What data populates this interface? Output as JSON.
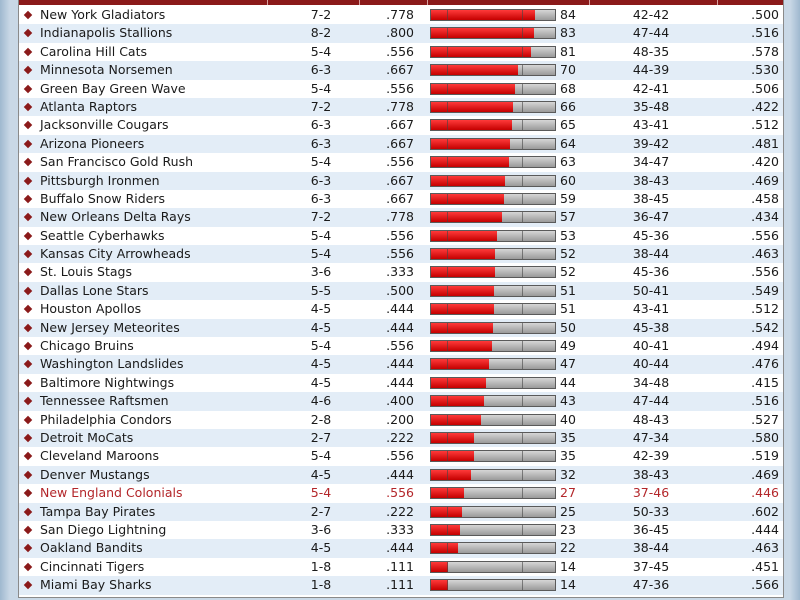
{
  "rows": [
    {
      "team": "New York Gladiators",
      "record": "7-2",
      "pct": ".778",
      "score": 84,
      "split": "42-42",
      "sos": ".500",
      "highlight": false
    },
    {
      "team": "Indianapolis Stallions",
      "record": "8-2",
      "pct": ".800",
      "score": 83,
      "split": "47-44",
      "sos": ".516",
      "highlight": false
    },
    {
      "team": "Carolina Hill Cats",
      "record": "5-4",
      "pct": ".556",
      "score": 81,
      "split": "48-35",
      "sos": ".578",
      "highlight": false
    },
    {
      "team": "Minnesota Norsemen",
      "record": "6-3",
      "pct": ".667",
      "score": 70,
      "split": "44-39",
      "sos": ".530",
      "highlight": false
    },
    {
      "team": "Green Bay Green Wave",
      "record": "5-4",
      "pct": ".556",
      "score": 68,
      "split": "42-41",
      "sos": ".506",
      "highlight": false
    },
    {
      "team": "Atlanta Raptors",
      "record": "7-2",
      "pct": ".778",
      "score": 66,
      "split": "35-48",
      "sos": ".422",
      "highlight": false
    },
    {
      "team": "Jacksonville Cougars",
      "record": "6-3",
      "pct": ".667",
      "score": 65,
      "split": "43-41",
      "sos": ".512",
      "highlight": false
    },
    {
      "team": "Arizona Pioneers",
      "record": "6-3",
      "pct": ".667",
      "score": 64,
      "split": "39-42",
      "sos": ".481",
      "highlight": false
    },
    {
      "team": "San Francisco Gold Rush",
      "record": "5-4",
      "pct": ".556",
      "score": 63,
      "split": "34-47",
      "sos": ".420",
      "highlight": false
    },
    {
      "team": "Pittsburgh Ironmen",
      "record": "6-3",
      "pct": ".667",
      "score": 60,
      "split": "38-43",
      "sos": ".469",
      "highlight": false
    },
    {
      "team": "Buffalo Snow Riders",
      "record": "6-3",
      "pct": ".667",
      "score": 59,
      "split": "38-45",
      "sos": ".458",
      "highlight": false
    },
    {
      "team": "New Orleans Delta Rays",
      "record": "7-2",
      "pct": ".778",
      "score": 57,
      "split": "36-47",
      "sos": ".434",
      "highlight": false
    },
    {
      "team": "Seattle Cyberhawks",
      "record": "5-4",
      "pct": ".556",
      "score": 53,
      "split": "45-36",
      "sos": ".556",
      "highlight": false
    },
    {
      "team": "Kansas City Arrowheads",
      "record": "5-4",
      "pct": ".556",
      "score": 52,
      "split": "38-44",
      "sos": ".463",
      "highlight": false
    },
    {
      "team": "St. Louis Stags",
      "record": "3-6",
      "pct": ".333",
      "score": 52,
      "split": "45-36",
      "sos": ".556",
      "highlight": false
    },
    {
      "team": "Dallas Lone Stars",
      "record": "5-5",
      "pct": ".500",
      "score": 51,
      "split": "50-41",
      "sos": ".549",
      "highlight": false
    },
    {
      "team": "Houston Apollos",
      "record": "4-5",
      "pct": ".444",
      "score": 51,
      "split": "43-41",
      "sos": ".512",
      "highlight": false
    },
    {
      "team": "New Jersey Meteorites",
      "record": "4-5",
      "pct": ".444",
      "score": 50,
      "split": "45-38",
      "sos": ".542",
      "highlight": false
    },
    {
      "team": "Chicago Bruins",
      "record": "5-4",
      "pct": ".556",
      "score": 49,
      "split": "40-41",
      "sos": ".494",
      "highlight": false
    },
    {
      "team": "Washington Landslides",
      "record": "4-5",
      "pct": ".444",
      "score": 47,
      "split": "40-44",
      "sos": ".476",
      "highlight": false
    },
    {
      "team": "Baltimore Nightwings",
      "record": "4-5",
      "pct": ".444",
      "score": 44,
      "split": "34-48",
      "sos": ".415",
      "highlight": false
    },
    {
      "team": "Tennessee Raftsmen",
      "record": "4-6",
      "pct": ".400",
      "score": 43,
      "split": "47-44",
      "sos": ".516",
      "highlight": false
    },
    {
      "team": "Philadelphia Condors",
      "record": "2-8",
      "pct": ".200",
      "score": 40,
      "split": "48-43",
      "sos": ".527",
      "highlight": false
    },
    {
      "team": "Detroit MoCats",
      "record": "2-7",
      "pct": ".222",
      "score": 35,
      "split": "47-34",
      "sos": ".580",
      "highlight": false
    },
    {
      "team": "Cleveland Maroons",
      "record": "5-4",
      "pct": ".556",
      "score": 35,
      "split": "42-39",
      "sos": ".519",
      "highlight": false
    },
    {
      "team": "Denver Mustangs",
      "record": "4-5",
      "pct": ".444",
      "score": 32,
      "split": "38-43",
      "sos": ".469",
      "highlight": false
    },
    {
      "team": "New England Colonials",
      "record": "5-4",
      "pct": ".556",
      "score": 27,
      "split": "37-46",
      "sos": ".446",
      "highlight": true
    },
    {
      "team": "Tampa Bay Pirates",
      "record": "2-7",
      "pct": ".222",
      "score": 25,
      "split": "50-33",
      "sos": ".602",
      "highlight": false
    },
    {
      "team": "San Diego Lightning",
      "record": "3-6",
      "pct": ".333",
      "score": 23,
      "split": "36-45",
      "sos": ".444",
      "highlight": false
    },
    {
      "team": "Oakland Bandits",
      "record": "4-5",
      "pct": ".444",
      "score": 22,
      "split": "38-44",
      "sos": ".463",
      "highlight": false
    },
    {
      "team": "Cincinnati Tigers",
      "record": "1-8",
      "pct": ".111",
      "score": 14,
      "split": "37-45",
      "sos": ".451",
      "highlight": false
    },
    {
      "team": "Miami Bay Sharks",
      "record": "1-8",
      "pct": ".111",
      "score": 14,
      "split": "47-36",
      "sos": ".566",
      "highlight": false
    }
  ],
  "score_max": 100,
  "colors": {
    "header": "#8b1a1a",
    "bar_fill": "#d40000",
    "bar_empty": "#b0b0b0",
    "highlight_text": "#b3262a",
    "row_alt": "#e3edf7"
  }
}
